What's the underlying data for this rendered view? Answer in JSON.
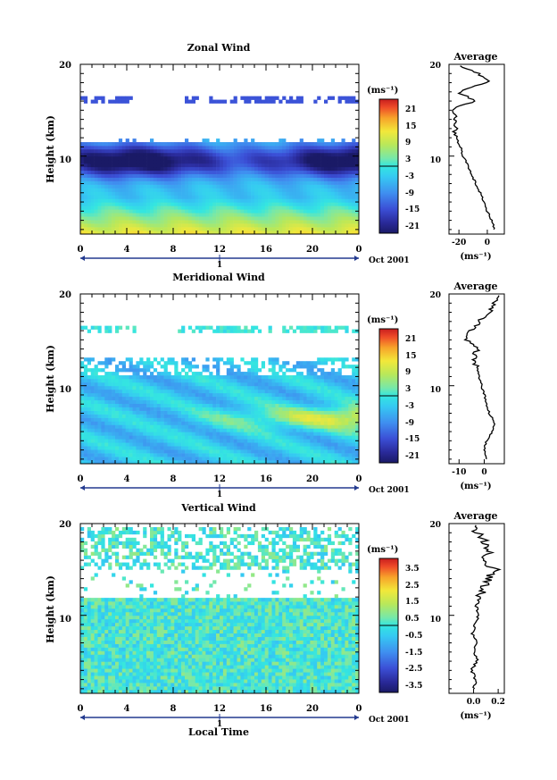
{
  "figure": {
    "bottom_xlabel": "Local Time",
    "date_label": "Oct 2001",
    "day_marker": "1"
  },
  "chart_data": [
    {
      "type": "heatmap",
      "title": "Zonal Wind",
      "ylabel": "Height (km)",
      "xlabel": "Local Time",
      "x_ticks": [
        "0",
        "4",
        "8",
        "12",
        "16",
        "20",
        "0"
      ],
      "y_ticks": [
        "20",
        "10"
      ],
      "xlim": [
        0,
        24
      ],
      "ylim": [
        1.5,
        20
      ],
      "colorbar": {
        "unit": "(ms⁻¹)",
        "ticks": [
          "21",
          "15",
          "9",
          "3",
          "-3",
          "-9",
          "-15",
          "-21"
        ],
        "range": [
          -24,
          24
        ]
      },
      "features": {
        "upper_fragment_km": 16,
        "jet_core_km": 9.5,
        "jet_min_ms": -24,
        "low_level_max_ms": 16
      },
      "profile": {
        "title": "Average",
        "xlabel": "(ms⁻¹)",
        "x_ticks": [
          "-20",
          "0"
        ],
        "xlim": [
          -27,
          12
        ],
        "heights_km": [
          2,
          3,
          4,
          5,
          6,
          7,
          8,
          9,
          10,
          11,
          12,
          13,
          14,
          15,
          16,
          17,
          18,
          19,
          20
        ],
        "values": [
          5,
          3,
          0,
          -2,
          -5,
          -8,
          -11,
          -14,
          -17,
          -19,
          -22,
          -23,
          -22,
          -25,
          -10,
          -20,
          0,
          -5,
          -22
        ]
      }
    },
    {
      "type": "heatmap",
      "title": "Meridional Wind",
      "ylabel": "Height (km)",
      "xlabel": "Local Time",
      "x_ticks": [
        "0",
        "4",
        "8",
        "12",
        "16",
        "20",
        "0"
      ],
      "y_ticks": [
        "20",
        "10"
      ],
      "xlim": [
        0,
        24
      ],
      "ylim": [
        1.5,
        20
      ],
      "colorbar": {
        "unit": "(ms⁻¹)",
        "ticks": [
          "21",
          "15",
          "9",
          "3",
          "-3",
          "-9",
          "-15",
          "-21"
        ],
        "range": [
          -24,
          24
        ]
      },
      "features": {
        "upper_fragment_km": 16,
        "positive_band_km": 6.5,
        "positive_band_max_ms": 12
      },
      "profile": {
        "title": "Average",
        "xlabel": "(ms⁻¹)",
        "x_ticks": [
          "-10",
          "0"
        ],
        "xlim": [
          -14,
          8
        ],
        "heights_km": [
          2,
          3,
          4,
          5,
          6,
          7,
          8,
          9,
          10,
          11,
          12,
          13,
          14,
          15,
          16,
          17,
          18,
          19,
          20
        ],
        "values": [
          1,
          0,
          1,
          3,
          4,
          2,
          1,
          0,
          -1,
          -2,
          -3,
          -4,
          -3,
          -7,
          -5,
          -2,
          2,
          4,
          6
        ]
      }
    },
    {
      "type": "heatmap",
      "title": "Vertical Wind",
      "ylabel": "Height (km)",
      "xlabel": "Local Time",
      "x_ticks": [
        "0",
        "4",
        "8",
        "12",
        "16",
        "20",
        "0"
      ],
      "y_ticks": [
        "20",
        "10"
      ],
      "xlim": [
        0,
        24
      ],
      "ylim": [
        1.5,
        20
      ],
      "colorbar": {
        "unit": "(ms⁻¹)",
        "ticks": [
          "3.5",
          "2.5",
          "1.5",
          "0.5",
          "-0.5",
          "-1.5",
          "-2.5",
          "-3.5"
        ],
        "range": [
          -4,
          4
        ]
      },
      "features": {
        "upper_fragment_km": 17,
        "gap_km": [
          12,
          15
        ]
      },
      "profile": {
        "title": "Average",
        "xlabel": "(ms⁻¹)",
        "x_ticks": [
          "0.0",
          "0.2"
        ],
        "xlim": [
          -0.2,
          0.25
        ],
        "heights_km": [
          2,
          3,
          4,
          5,
          6,
          7,
          8,
          9,
          10,
          11,
          12,
          13,
          14,
          15,
          16,
          17,
          18,
          19,
          20
        ],
        "values": [
          0.0,
          0.02,
          -0.02,
          0.03,
          0.0,
          0.02,
          -0.01,
          0.01,
          0.04,
          0.02,
          0.05,
          0.08,
          0.12,
          0.18,
          0.06,
          0.14,
          0.09,
          0.03,
          0.0
        ]
      }
    }
  ]
}
